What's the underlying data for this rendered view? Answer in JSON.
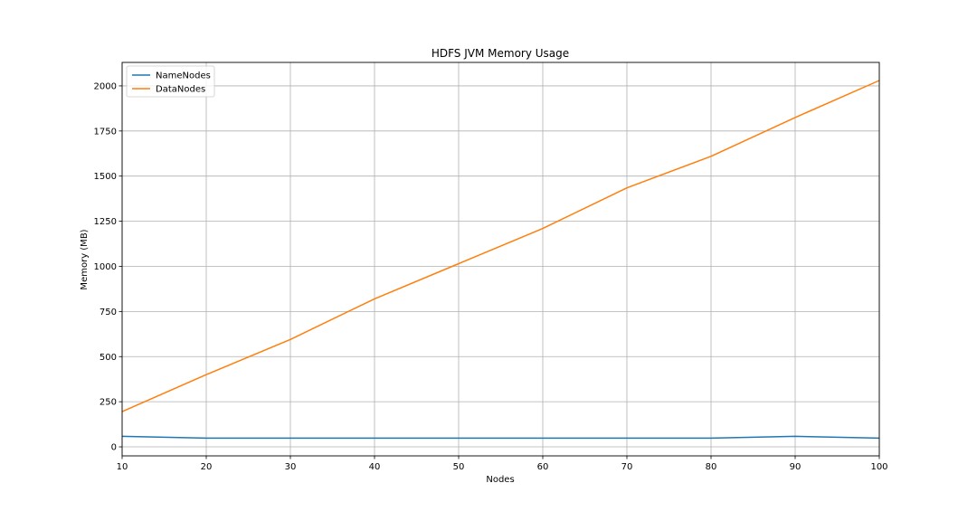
{
  "chart_data": {
    "type": "line",
    "title": "HDFS JVM Memory Usage",
    "xlabel": "Nodes",
    "ylabel": "Memory (MB)",
    "x": [
      10,
      20,
      30,
      40,
      50,
      60,
      70,
      80,
      90,
      100
    ],
    "xlim": [
      10,
      100
    ],
    "ylim": [
      -50,
      2130
    ],
    "xticks": [
      10,
      20,
      30,
      40,
      50,
      60,
      70,
      80,
      90,
      100
    ],
    "yticks": [
      0,
      250,
      500,
      750,
      1000,
      1250,
      1500,
      1750,
      2000
    ],
    "grid": true,
    "legend_position": "upper left",
    "series": [
      {
        "name": "NameNodes",
        "color": "#1f77b4",
        "values": [
          58,
          48,
          48,
          48,
          48,
          48,
          48,
          48,
          58,
          48
        ]
      },
      {
        "name": "DataNodes",
        "color": "#ff7f0e",
        "values": [
          195,
          400,
          595,
          820,
          1015,
          1210,
          1435,
          1610,
          1825,
          2030
        ]
      }
    ]
  }
}
